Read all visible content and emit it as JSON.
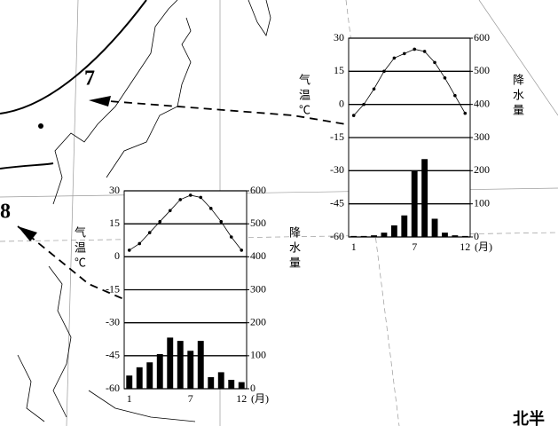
{
  "chart_data": [
    {
      "type": "combo",
      "x_label": "(月)",
      "y_label": "气温℃",
      "y2_label": "降水量",
      "categories": [
        "1",
        null,
        null,
        null,
        null,
        null,
        "7",
        null,
        null,
        null,
        null,
        "12"
      ],
      "ylim": [
        -60,
        30
      ],
      "yticks": [
        -60,
        -45,
        -30,
        -15,
        0,
        15,
        30
      ],
      "y2lim": [
        0,
        600
      ],
      "y2ticks": [
        0,
        100,
        200,
        300,
        400,
        500,
        600
      ],
      "grid": true,
      "series": [
        {
          "type": "line",
          "color": "#000000",
          "values": [
            -5,
            0,
            7,
            15,
            21,
            23,
            25,
            24,
            19,
            12,
            4,
            -4
          ]
        },
        {
          "type": "bar",
          "axis": "y2",
          "color": "#000000",
          "values": [
            3,
            3,
            5,
            13,
            35,
            65,
            200,
            235,
            55,
            13,
            5,
            3
          ]
        }
      ]
    },
    {
      "type": "combo",
      "x_label": "(月)",
      "y_label": "气温℃",
      "y2_label": "降水量",
      "categories": [
        "1",
        null,
        null,
        null,
        null,
        null,
        "7",
        null,
        null,
        null,
        null,
        "12"
      ],
      "ylim": [
        -60,
        30
      ],
      "yticks": [
        -60,
        -45,
        -30,
        -15,
        0,
        15,
        30
      ],
      "y2lim": [
        0,
        600
      ],
      "y2ticks": [
        0,
        100,
        200,
        300,
        400,
        500,
        600
      ],
      "grid": true,
      "series": [
        {
          "type": "line",
          "color": "#000000",
          "values": [
            3,
            6,
            11,
            16,
            21,
            26,
            28,
            27,
            22,
            16,
            9,
            3
          ]
        },
        {
          "type": "bar",
          "axis": "y2",
          "color": "#000000",
          "values": [
            40,
            65,
            80,
            105,
            155,
            145,
            115,
            145,
            35,
            50,
            27,
            20
          ]
        }
      ]
    }
  ],
  "map_labels": [
    "7",
    "8",
    "北半"
  ]
}
